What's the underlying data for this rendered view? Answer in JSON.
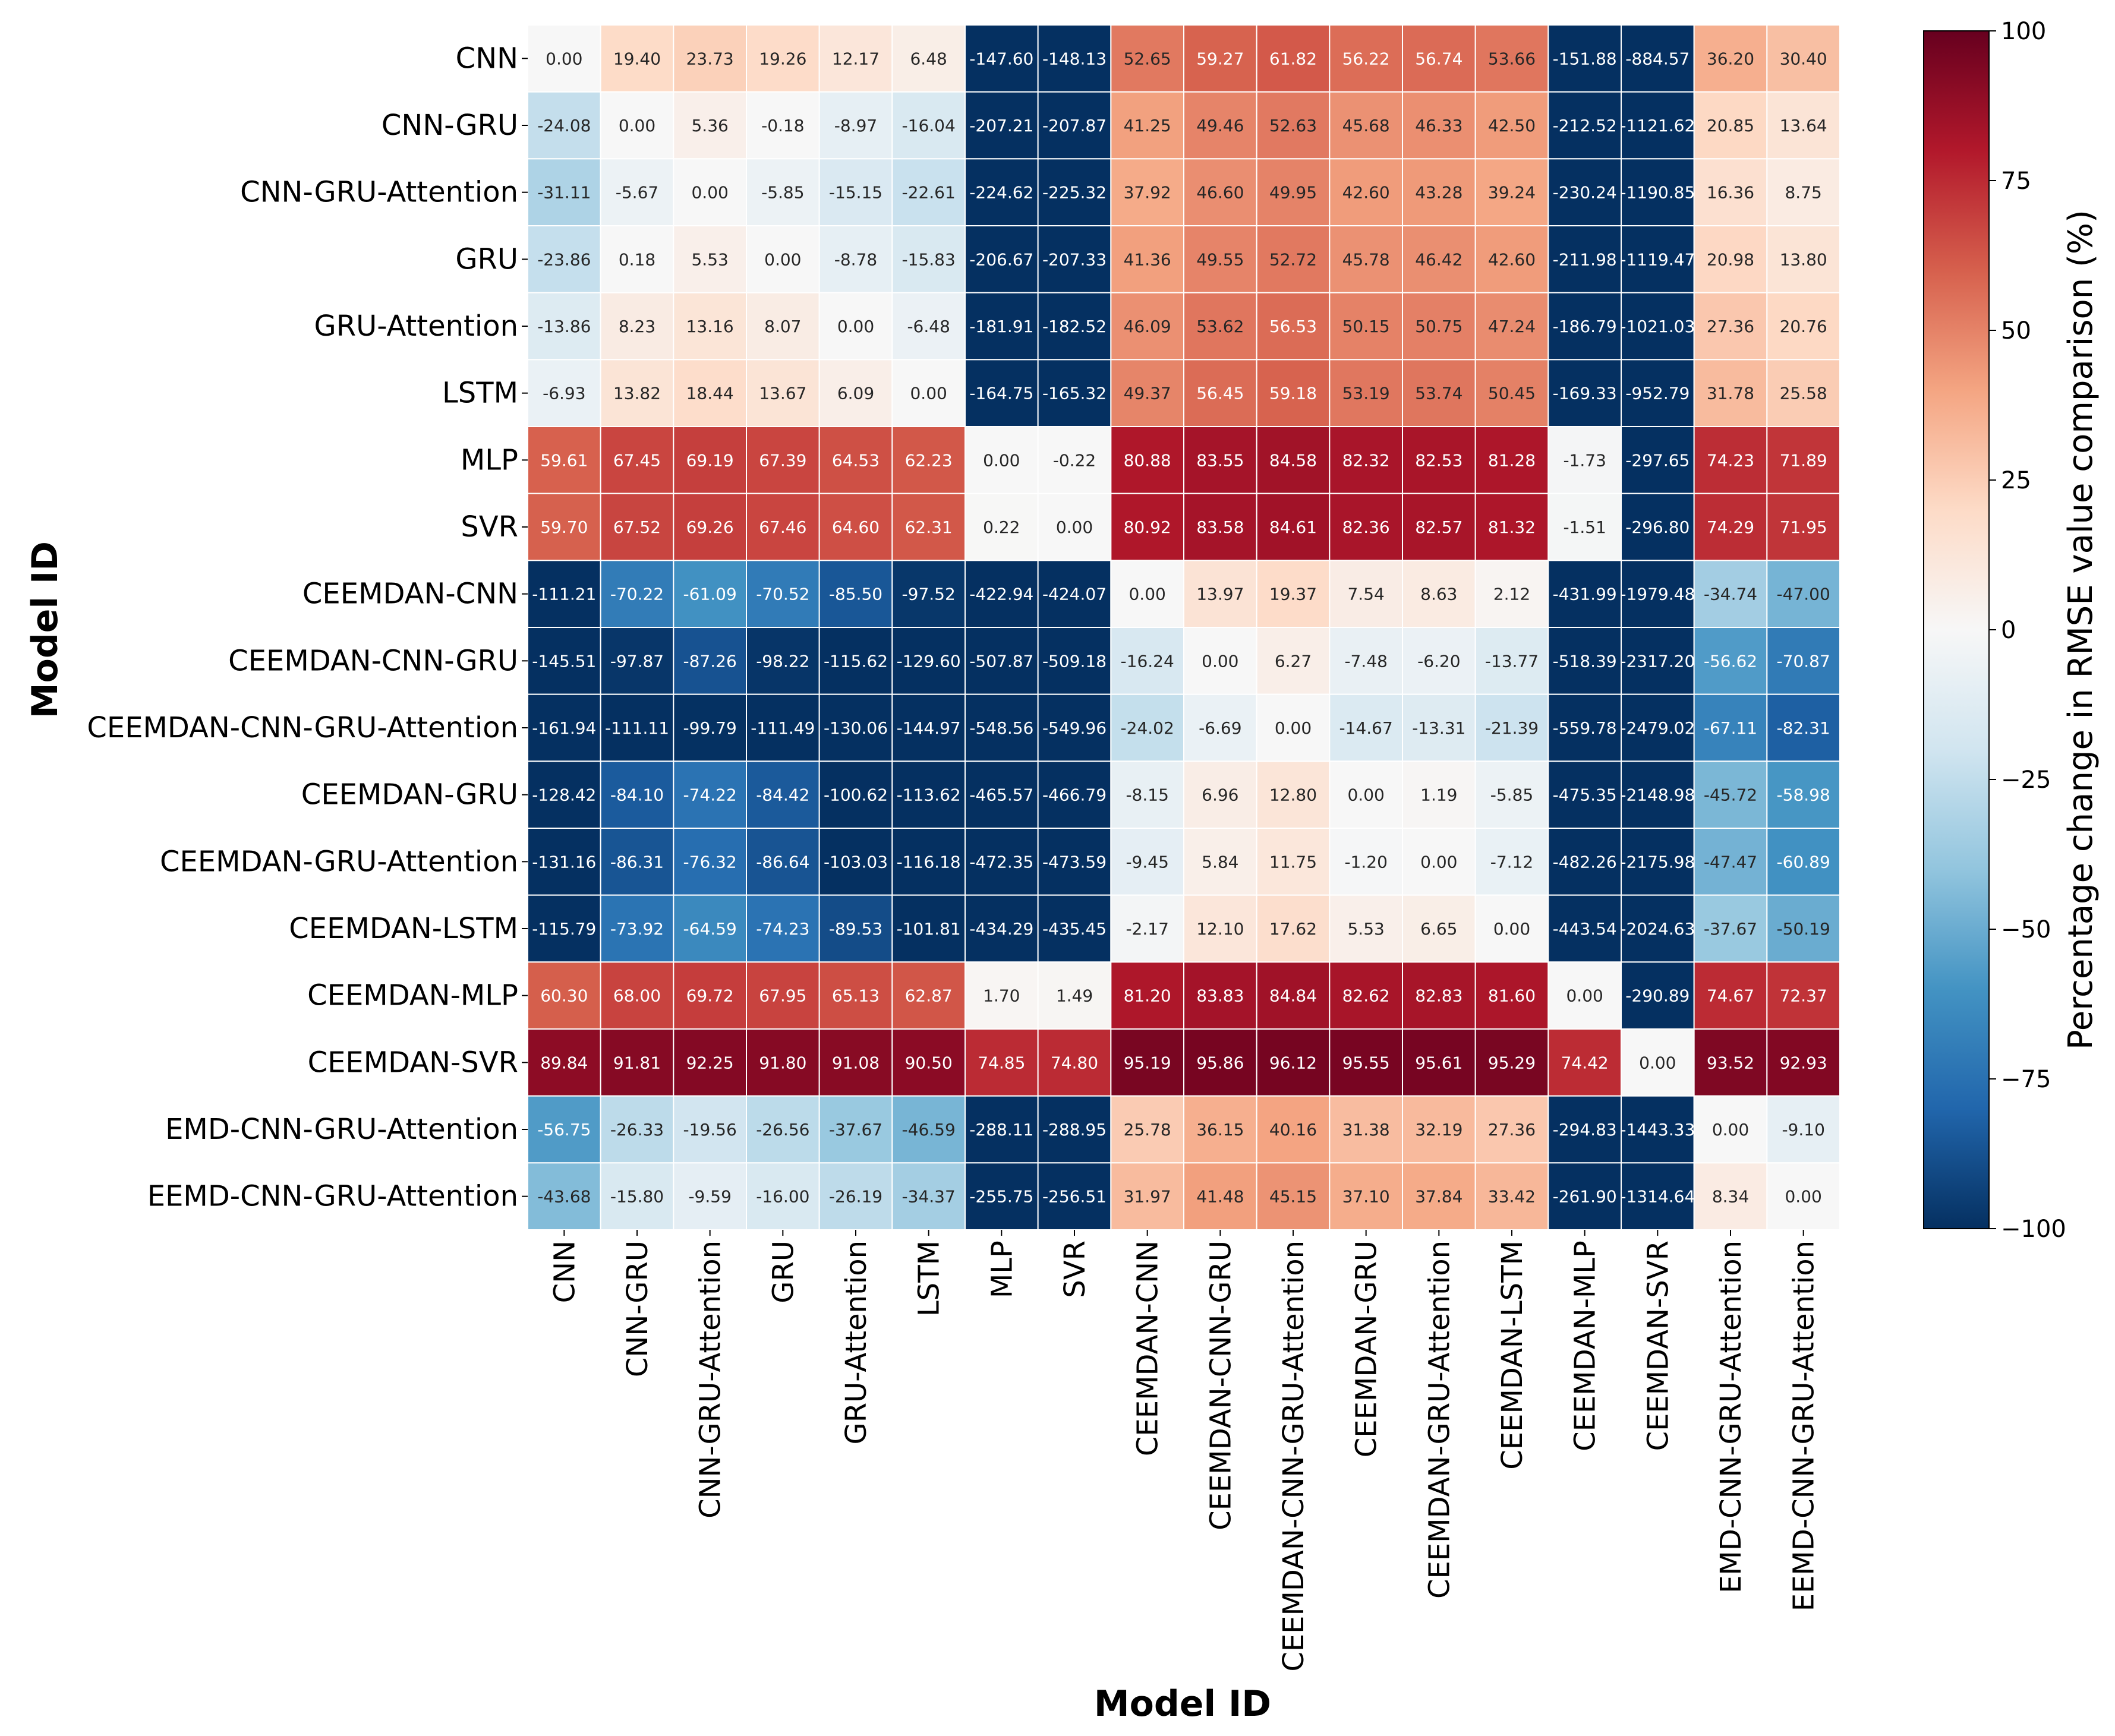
{
  "chart_data": {
    "type": "heatmap",
    "xlabel": "Model ID",
    "ylabel": "Model ID",
    "colorbar_label": "Percentage change in RMSE value comparison (%)",
    "colorbar_range": [
      -100,
      100
    ],
    "colorbar_ticks": [
      100,
      75,
      50,
      25,
      0,
      -25,
      -50,
      -75,
      -100
    ],
    "colormap": {
      "low": "#053061",
      "mid": "#f7f7f7",
      "high": "#67001f"
    },
    "row_labels": [
      "CNN",
      "CNN-GRU",
      "CNN-GRU-Attention",
      "GRU",
      "GRU-Attention",
      "LSTM",
      "MLP",
      "SVR",
      "CEEMDAN-CNN",
      "CEEMDAN-CNN-GRU",
      "CEEMDAN-CNN-GRU-Attention",
      "CEEMDAN-GRU",
      "CEEMDAN-GRU-Attention",
      "CEEMDAN-LSTM",
      "CEEMDAN-MLP",
      "CEEMDAN-SVR",
      "EMD-CNN-GRU-Attention",
      "EEMD-CNN-GRU-Attention"
    ],
    "col_labels": [
      "CNN",
      "CNN-GRU",
      "CNN-GRU-Attention",
      "GRU",
      "GRU-Attention",
      "LSTM",
      "MLP",
      "SVR",
      "CEEMDAN-CNN",
      "CEEMDAN-CNN-GRU",
      "CEEMDAN-CNN-GRU-Attention",
      "CEEMDAN-GRU",
      "CEEMDAN-GRU-Attention",
      "CEEMDAN-LSTM",
      "CEEMDAN-MLP",
      "CEEMDAN-SVR",
      "EMD-CNN-GRU-Attention",
      "EEMD-CNN-GRU-Attention"
    ],
    "values": [
      [
        "0.00",
        "19.40",
        "23.73",
        "19.26",
        "12.17",
        "6.48",
        "-147.60",
        "-148.13",
        "52.65",
        "59.27",
        "61.82",
        "56.22",
        "56.74",
        "53.66",
        "-151.88",
        "-884.57",
        "36.20",
        "30.40"
      ],
      [
        "-24.08",
        "0.00",
        "5.36",
        "-0.18",
        "-8.97",
        "-16.04",
        "-207.21",
        "-207.87",
        "41.25",
        "49.46",
        "52.63",
        "45.68",
        "46.33",
        "42.50",
        "-212.52",
        "-1121.62",
        "20.85",
        "13.64"
      ],
      [
        "-31.11",
        "-5.67",
        "0.00",
        "-5.85",
        "-15.15",
        "-22.61",
        "-224.62",
        "-225.32",
        "37.92",
        "46.60",
        "49.95",
        "42.60",
        "43.28",
        "39.24",
        "-230.24",
        "-1190.85",
        "16.36",
        "8.75"
      ],
      [
        "-23.86",
        "0.18",
        "5.53",
        "0.00",
        "-8.78",
        "-15.83",
        "-206.67",
        "-207.33",
        "41.36",
        "49.55",
        "52.72",
        "45.78",
        "46.42",
        "42.60",
        "-211.98",
        "-1119.47",
        "20.98",
        "13.80"
      ],
      [
        "-13.86",
        "8.23",
        "13.16",
        "8.07",
        "0.00",
        "-6.48",
        "-181.91",
        "-182.52",
        "46.09",
        "53.62",
        "56.53",
        "50.15",
        "50.75",
        "47.24",
        "-186.79",
        "-1021.03",
        "27.36",
        "20.76"
      ],
      [
        "-6.93",
        "13.82",
        "18.44",
        "13.67",
        "6.09",
        "0.00",
        "-164.75",
        "-165.32",
        "49.37",
        "56.45",
        "59.18",
        "53.19",
        "53.74",
        "50.45",
        "-169.33",
        "-952.79",
        "31.78",
        "25.58"
      ],
      [
        "59.61",
        "67.45",
        "69.19",
        "67.39",
        "64.53",
        "62.23",
        "0.00",
        "-0.22",
        "80.88",
        "83.55",
        "84.58",
        "82.32",
        "82.53",
        "81.28",
        "-1.73",
        "-297.65",
        "74.23",
        "71.89"
      ],
      [
        "59.70",
        "67.52",
        "69.26",
        "67.46",
        "64.60",
        "62.31",
        "0.22",
        "0.00",
        "80.92",
        "83.58",
        "84.61",
        "82.36",
        "82.57",
        "81.32",
        "-1.51",
        "-296.80",
        "74.29",
        "71.95"
      ],
      [
        "-111.21",
        "-70.22",
        "-61.09",
        "-70.52",
        "-85.50",
        "-97.52",
        "-422.94",
        "-424.07",
        "0.00",
        "13.97",
        "19.37",
        "7.54",
        "8.63",
        "2.12",
        "-431.99",
        "-1979.48",
        "-34.74",
        "-47.00"
      ],
      [
        "-145.51",
        "-97.87",
        "-87.26",
        "-98.22",
        "-115.62",
        "-129.60",
        "-507.87",
        "-509.18",
        "-16.24",
        "0.00",
        "6.27",
        "-7.48",
        "-6.20",
        "-13.77",
        "-518.39",
        "-2317.20",
        "-56.62",
        "-70.87"
      ],
      [
        "-161.94",
        "-111.11",
        "-99.79",
        "-111.49",
        "-130.06",
        "-144.97",
        "-548.56",
        "-549.96",
        "-24.02",
        "-6.69",
        "0.00",
        "-14.67",
        "-13.31",
        "-21.39",
        "-559.78",
        "-2479.02",
        "-67.11",
        "-82.31"
      ],
      [
        "-128.42",
        "-84.10",
        "-74.22",
        "-84.42",
        "-100.62",
        "-113.62",
        "-465.57",
        "-466.79",
        "-8.15",
        "6.96",
        "12.80",
        "0.00",
        "1.19",
        "-5.85",
        "-475.35",
        "-2148.98",
        "-45.72",
        "-58.98"
      ],
      [
        "-131.16",
        "-86.31",
        "-76.32",
        "-86.64",
        "-103.03",
        "-116.18",
        "-472.35",
        "-473.59",
        "-9.45",
        "5.84",
        "11.75",
        "-1.20",
        "0.00",
        "-7.12",
        "-482.26",
        "-2175.98",
        "-47.47",
        "-60.89"
      ],
      [
        "-115.79",
        "-73.92",
        "-64.59",
        "-74.23",
        "-89.53",
        "-101.81",
        "-434.29",
        "-435.45",
        "-2.17",
        "12.10",
        "17.62",
        "5.53",
        "6.65",
        "0.00",
        "-443.54",
        "-2024.63",
        "-37.67",
        "-50.19"
      ],
      [
        "60.30",
        "68.00",
        "69.72",
        "67.95",
        "65.13",
        "62.87",
        "1.70",
        "1.49",
        "81.20",
        "83.83",
        "84.84",
        "82.62",
        "82.83",
        "81.60",
        "0.00",
        "-290.89",
        "74.67",
        "72.37"
      ],
      [
        "89.84",
        "91.81",
        "92.25",
        "91.80",
        "91.08",
        "90.50",
        "74.85",
        "74.80",
        "95.19",
        "95.86",
        "96.12",
        "95.55",
        "95.61",
        "95.29",
        "74.42",
        "0.00",
        "93.52",
        "92.93"
      ],
      [
        "-56.75",
        "-26.33",
        "-19.56",
        "-26.56",
        "-37.67",
        "-46.59",
        "-288.11",
        "-288.95",
        "25.78",
        "36.15",
        "40.16",
        "31.38",
        "32.19",
        "27.36",
        "-294.83",
        "-1443.33",
        "0.00",
        "-9.10"
      ],
      [
        "-43.68",
        "-15.80",
        "-9.59",
        "-16.00",
        "-26.19",
        "-34.37",
        "-255.75",
        "-256.51",
        "31.97",
        "41.48",
        "45.15",
        "37.10",
        "37.84",
        "33.42",
        "-261.90",
        "-1314.64",
        "8.34",
        "0.00"
      ]
    ]
  }
}
